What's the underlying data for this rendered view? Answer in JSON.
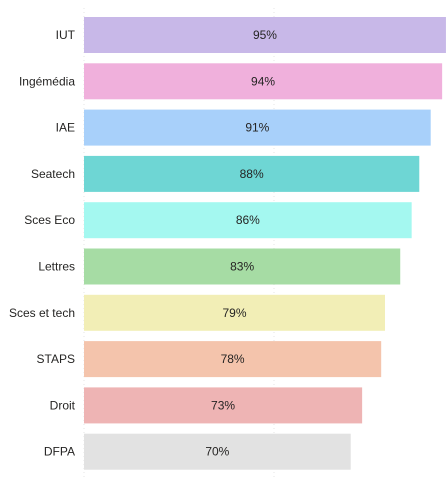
{
  "chart_data": {
    "type": "bar",
    "orientation": "horizontal",
    "categories": [
      "IUT",
      "Ingémédia",
      "IAE",
      "Seatech",
      "Sces Eco",
      "Lettres",
      "Sces et tech",
      "STAPS",
      "Droit",
      "DFPA"
    ],
    "values": [
      95,
      94,
      91,
      88,
      86,
      83,
      79,
      78,
      73,
      70
    ],
    "value_labels": [
      "95%",
      "94%",
      "91%",
      "88%",
      "86%",
      "83%",
      "79%",
      "78%",
      "73%",
      "70%"
    ],
    "colors": [
      "#c8b8e8",
      "#f0b0dc",
      "#a8d0fa",
      "#6ed6d4",
      "#a4f8f0",
      "#a6dca4",
      "#f2eeb6",
      "#f4c4ac",
      "#eeb4b4",
      "#e2e2e2"
    ],
    "xlim": [
      0,
      100
    ],
    "grid": true,
    "title": "",
    "xlabel": "",
    "ylabel": ""
  }
}
